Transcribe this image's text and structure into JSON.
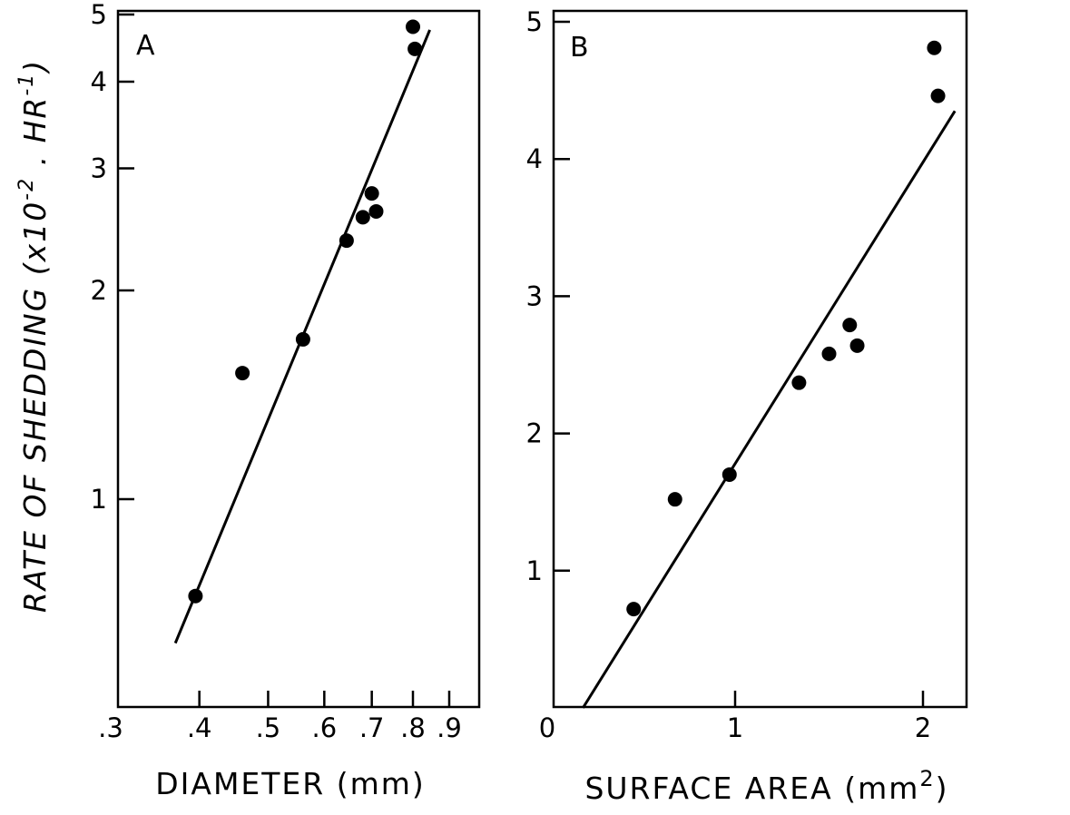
{
  "ylabel": {
    "main": "RATE OF SHEDDING (x10",
    "exp1": "-2",
    "mid": " . HR",
    "exp2": "-1",
    "end": ")"
  },
  "chart_data": [
    {
      "panel": "A",
      "type": "scatter",
      "xscale": "log",
      "yscale": "log",
      "xlabel": "DIAMETER (mm)",
      "xlim": [
        0.3,
        1.0
      ],
      "ylim": [
        0.5,
        5
      ],
      "xticks": [
        0.3,
        0.4,
        0.5,
        0.6,
        0.7,
        0.8,
        0.9
      ],
      "xtick_labels": [
        ".3",
        ".4",
        ".5",
        ".6",
        ".7",
        ".8",
        ".9"
      ],
      "yticks": [
        1,
        2,
        3,
        4,
        5
      ],
      "ytick_labels": [
        "1",
        "2",
        "3",
        "4",
        "5"
      ],
      "points": [
        {
          "x": 0.395,
          "y": 0.725
        },
        {
          "x": 0.46,
          "y": 1.52
        },
        {
          "x": 0.56,
          "y": 1.7
        },
        {
          "x": 0.645,
          "y": 2.36
        },
        {
          "x": 0.68,
          "y": 2.55
        },
        {
          "x": 0.7,
          "y": 2.76
        },
        {
          "x": 0.71,
          "y": 2.6
        },
        {
          "x": 0.8,
          "y": 4.8
        },
        {
          "x": 0.805,
          "y": 4.46
        }
      ],
      "fit_line": {
        "x": [
          0.37,
          0.845
        ],
        "y": [
          0.62,
          4.75
        ]
      }
    },
    {
      "panel": "B",
      "type": "scatter",
      "xscale": "linear",
      "yscale": "linear",
      "xlabel": "SURFACE AREA (mm",
      "xlabel_sup": "2",
      "xlabel_end": ")",
      "xlim": [
        0,
        2.25
      ],
      "ylim": [
        0,
        5
      ],
      "xticks": [
        0,
        1,
        2
      ],
      "xtick_labels": [
        "0",
        "1",
        "2"
      ],
      "yticks": [
        1,
        2,
        3,
        4,
        5
      ],
      "ytick_labels": [
        "1",
        "2",
        "3",
        "4",
        "5"
      ],
      "points": [
        {
          "x": 0.46,
          "y": 0.72
        },
        {
          "x": 0.68,
          "y": 1.52
        },
        {
          "x": 0.97,
          "y": 1.7
        },
        {
          "x": 1.34,
          "y": 2.37
        },
        {
          "x": 1.5,
          "y": 2.58
        },
        {
          "x": 1.61,
          "y": 2.79
        },
        {
          "x": 1.65,
          "y": 2.64
        },
        {
          "x": 2.06,
          "y": 4.81
        },
        {
          "x": 2.08,
          "y": 4.46
        }
      ],
      "fit_line": {
        "x": [
          0.19,
          2.17
        ],
        "y": [
          0.0,
          4.35
        ]
      }
    }
  ]
}
